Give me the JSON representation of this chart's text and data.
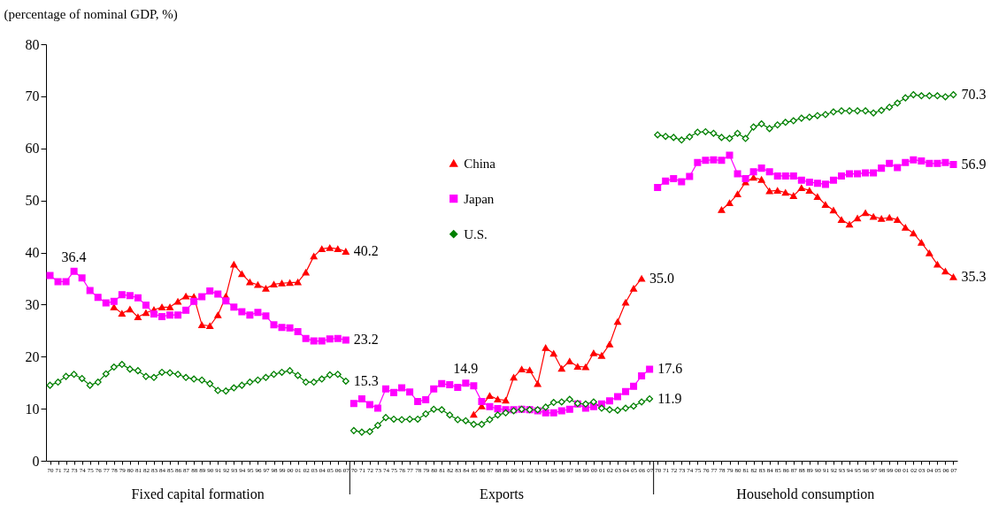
{
  "chart_data": {
    "type": "line",
    "ylabel": "(percentage of nominal GDP, %)",
    "categories": [
      "70",
      "71",
      "72",
      "73",
      "74",
      "75",
      "76",
      "77",
      "78",
      "79",
      "80",
      "81",
      "82",
      "83",
      "84",
      "85",
      "86",
      "87",
      "88",
      "89",
      "90",
      "91",
      "92",
      "93",
      "94",
      "95",
      "96",
      "97",
      "98",
      "99",
      "00",
      "01",
      "02",
      "03",
      "04",
      "05",
      "06",
      "07",
      "70",
      "71",
      "72",
      "73",
      "74",
      "75",
      "76",
      "77",
      "78",
      "79",
      "80",
      "81",
      "82",
      "83",
      "84",
      "85",
      "86",
      "87",
      "88",
      "89",
      "90",
      "91",
      "92",
      "93",
      "94",
      "95",
      "96",
      "97",
      "98",
      "99",
      "00",
      "01",
      "02",
      "03",
      "04",
      "05",
      "06",
      "07",
      "70",
      "71",
      "72",
      "73",
      "74",
      "75",
      "76",
      "77",
      "78",
      "79",
      "80",
      "81",
      "82",
      "83",
      "84",
      "85",
      "86",
      "87",
      "88",
      "89",
      "90",
      "91",
      "92",
      "93",
      "94",
      "95",
      "96",
      "97",
      "98",
      "99",
      "00",
      "01",
      "02",
      "03",
      "04",
      "05",
      "06",
      "07"
    ],
    "annotations": [
      "Fixed capital formation",
      "Exports",
      "Household consumption"
    ],
    "ylim": [
      0,
      80
    ],
    "yticks": [
      0,
      10,
      20,
      30,
      40,
      50,
      60,
      70,
      80
    ],
    "grid": false,
    "legend": "top",
    "series": [
      {
        "name": "China",
        "color": "#ff0000",
        "marker": "triangle",
        "values": [
          null,
          null,
          null,
          null,
          null,
          null,
          null,
          null,
          29.5,
          28.3,
          29.1,
          27.6,
          28.4,
          29.0,
          29.5,
          29.5,
          30.6,
          31.6,
          31.5,
          26.1,
          25.9,
          28.0,
          31.6,
          37.7,
          35.9,
          34.3,
          33.8,
          33.1,
          33.9,
          34.1,
          34.2,
          34.3,
          36.2,
          39.3,
          40.7,
          40.9,
          40.7,
          40.2,
          null,
          null,
          null,
          null,
          null,
          null,
          null,
          null,
          null,
          null,
          null,
          null,
          null,
          null,
          null,
          8.9,
          10.5,
          12.5,
          11.8,
          11.6,
          16.0,
          17.6,
          17.4,
          14.8,
          21.7,
          20.6,
          17.7,
          19.1,
          18.1,
          18.0,
          20.7,
          20.2,
          22.4,
          26.7,
          30.4,
          33.1,
          35.0,
          null,
          null,
          null,
          null,
          null,
          null,
          null,
          null,
          null,
          48.2,
          49.5,
          51.2,
          53.5,
          54.4,
          54.0,
          51.8,
          51.9,
          51.5,
          50.9,
          52.4,
          51.9,
          50.7,
          49.2,
          48.1,
          46.3,
          45.4,
          46.6,
          47.6,
          46.9,
          46.5,
          46.7,
          46.3,
          44.8,
          43.7,
          41.9,
          39.9,
          37.7,
          36.4,
          35.3
        ],
        "value_labels": [
          null,
          null,
          null,
          null,
          null,
          null,
          null,
          null,
          null,
          null,
          null,
          null,
          null,
          null,
          null,
          null,
          null,
          null,
          null,
          null,
          null,
          null,
          null,
          null,
          null,
          null,
          null,
          null,
          null,
          null,
          null,
          null,
          null,
          null,
          null,
          null,
          null,
          "40.2",
          null,
          null,
          null,
          null,
          null,
          null,
          null,
          null,
          null,
          null,
          null,
          null,
          null,
          null,
          null,
          null,
          null,
          null,
          null,
          null,
          null,
          null,
          null,
          null,
          null,
          null,
          null,
          null,
          null,
          null,
          null,
          null,
          null,
          null,
          null,
          null,
          "35.0",
          null,
          null,
          null,
          null,
          null,
          null,
          null,
          null,
          null,
          null,
          null,
          null,
          null,
          null,
          null,
          null,
          null,
          null,
          null,
          null,
          null,
          null,
          null,
          null,
          null,
          null,
          null,
          null,
          null,
          null,
          null,
          null,
          null,
          null,
          null,
          null,
          null,
          null,
          "35.3"
        ]
      },
      {
        "name": "Japan",
        "color": "#ff00ff",
        "marker": "square",
        "values": [
          35.6,
          34.4,
          34.4,
          36.4,
          35.1,
          32.7,
          31.4,
          30.3,
          30.6,
          31.9,
          31.7,
          31.3,
          29.9,
          28.2,
          27.7,
          28.0,
          28.0,
          28.9,
          30.6,
          31.5,
          32.6,
          32.0,
          30.7,
          29.5,
          28.6,
          28.0,
          28.5,
          27.8,
          26.1,
          25.6,
          25.5,
          24.8,
          23.5,
          23.0,
          23.0,
          23.4,
          23.5,
          23.2,
          11.0,
          11.9,
          10.8,
          10.1,
          13.8,
          13.1,
          14.0,
          13.2,
          11.4,
          11.7,
          13.8,
          14.8,
          14.6,
          14.1,
          14.9,
          14.4,
          11.4,
          10.4,
          10.0,
          9.8,
          9.8,
          9.9,
          9.8,
          9.6,
          9.2,
          9.2,
          9.6,
          9.9,
          10.9,
          10.1,
          10.4,
          10.9,
          11.5,
          12.3,
          13.3,
          14.3,
          16.3,
          17.6,
          52.5,
          53.7,
          54.2,
          53.6,
          54.6,
          57.3,
          57.7,
          57.8,
          57.7,
          58.7,
          55.1,
          54.2,
          55.5,
          56.2,
          55.5,
          54.7,
          54.7,
          54.7,
          53.9,
          53.5,
          53.3,
          53.1,
          53.9,
          54.7,
          55.1,
          55.1,
          55.3,
          55.3,
          56.2,
          57.1,
          56.3,
          57.3,
          57.8,
          57.6,
          57.1,
          57.1,
          57.3,
          56.9
        ],
        "value_labels": [
          null,
          null,
          null,
          "36.4",
          null,
          null,
          null,
          null,
          null,
          null,
          null,
          null,
          null,
          null,
          null,
          null,
          null,
          null,
          null,
          null,
          null,
          null,
          null,
          null,
          null,
          null,
          null,
          null,
          null,
          null,
          null,
          null,
          null,
          null,
          null,
          null,
          null,
          "23.2",
          null,
          null,
          null,
          null,
          null,
          null,
          null,
          null,
          null,
          null,
          null,
          null,
          null,
          null,
          "14.9",
          null,
          null,
          null,
          null,
          null,
          null,
          null,
          null,
          null,
          null,
          null,
          null,
          null,
          null,
          null,
          null,
          null,
          null,
          null,
          null,
          null,
          null,
          "17.6",
          null,
          null,
          null,
          null,
          null,
          null,
          null,
          null,
          null,
          null,
          null,
          null,
          null,
          null,
          null,
          null,
          null,
          null,
          null,
          null,
          null,
          null,
          null,
          null,
          null,
          null,
          null,
          null,
          null,
          null,
          null,
          null,
          null,
          null,
          null,
          null,
          null,
          "56.9"
        ]
      },
      {
        "name": "U.S.",
        "color": "#008000",
        "marker": "diamond",
        "values": [
          14.5,
          15.1,
          16.2,
          16.6,
          15.8,
          14.5,
          15.1,
          16.7,
          18.0,
          18.5,
          17.6,
          17.3,
          16.2,
          16.0,
          17.0,
          16.9,
          16.6,
          16.0,
          15.7,
          15.5,
          14.8,
          13.5,
          13.4,
          14.0,
          14.5,
          15.1,
          15.5,
          16.0,
          16.6,
          17.0,
          17.3,
          16.4,
          15.1,
          15.1,
          15.7,
          16.5,
          16.6,
          15.3,
          5.8,
          5.5,
          5.6,
          6.8,
          8.3,
          8.0,
          7.9,
          8.0,
          8.0,
          9.0,
          9.9,
          9.8,
          8.8,
          7.9,
          7.7,
          7.0,
          7.0,
          7.9,
          8.8,
          9.2,
          9.6,
          9.9,
          9.8,
          9.8,
          10.3,
          11.2,
          11.3,
          11.8,
          11.0,
          10.9,
          11.3,
          10.1,
          9.8,
          9.7,
          10.1,
          10.5,
          11.3,
          11.9,
          62.6,
          62.3,
          62.1,
          61.6,
          62.2,
          63.1,
          63.2,
          62.9,
          62.1,
          61.9,
          62.9,
          61.9,
          64.1,
          64.7,
          63.8,
          64.5,
          65.0,
          65.3,
          65.8,
          66.0,
          66.3,
          66.5,
          67.0,
          67.2,
          67.2,
          67.2,
          67.2,
          66.8,
          67.3,
          67.9,
          68.7,
          69.7,
          70.3,
          70.1,
          70.1,
          70.1,
          69.9,
          70.3
        ],
        "value_labels": [
          null,
          null,
          null,
          null,
          null,
          null,
          null,
          null,
          null,
          null,
          null,
          null,
          null,
          null,
          null,
          null,
          null,
          null,
          null,
          null,
          null,
          null,
          null,
          null,
          null,
          null,
          null,
          null,
          null,
          null,
          null,
          null,
          null,
          null,
          null,
          null,
          null,
          "15.3",
          null,
          null,
          null,
          null,
          null,
          null,
          null,
          null,
          null,
          null,
          null,
          null,
          null,
          null,
          null,
          null,
          null,
          null,
          null,
          null,
          null,
          null,
          null,
          null,
          null,
          null,
          null,
          null,
          null,
          null,
          null,
          null,
          null,
          null,
          null,
          null,
          null,
          "11.9",
          null,
          null,
          null,
          null,
          null,
          null,
          null,
          null,
          null,
          null,
          null,
          null,
          null,
          null,
          null,
          null,
          null,
          null,
          null,
          null,
          null,
          null,
          null,
          null,
          null,
          null,
          null,
          null,
          null,
          null,
          null,
          null,
          null,
          null,
          null,
          null,
          null,
          "70.3"
        ]
      }
    ]
  }
}
